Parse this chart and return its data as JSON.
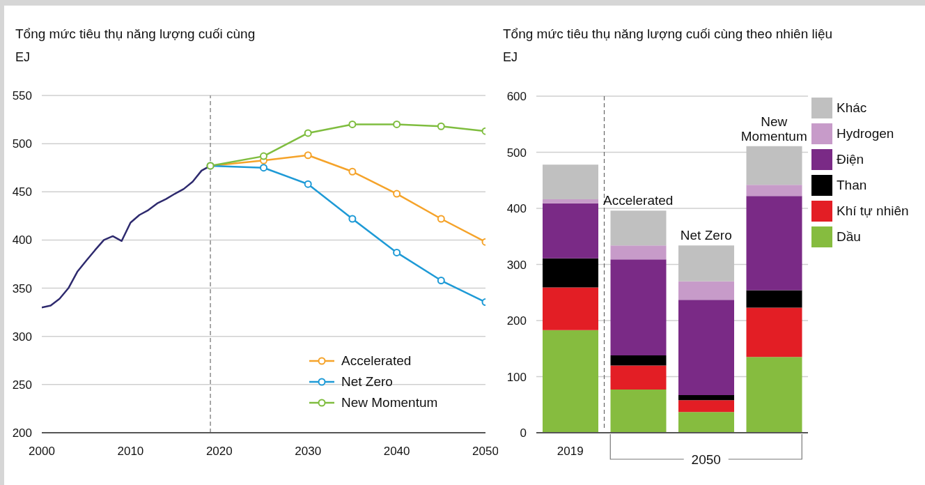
{
  "chart_data": [
    {
      "type": "line",
      "title": "Tổng mức tiêu thụ năng lượng cuối cùng",
      "ylabel": "EJ",
      "xlim": [
        2000,
        2050
      ],
      "xticks": [
        2000,
        2010,
        2020,
        2030,
        2040,
        2050
      ],
      "ylim": [
        200,
        550
      ],
      "yticks": [
        200,
        250,
        300,
        350,
        400,
        450,
        500,
        550
      ],
      "grid": "y",
      "legend": "bottom right",
      "marker": "circle",
      "line_style": "solid",
      "ref_lines": [
        {
          "axis": "x",
          "value": 2019,
          "color": "#8c8c8c",
          "line_style": "dashed"
        }
      ],
      "series": [
        {
          "color": "#2e2a6e",
          "marker": "none",
          "x": [
            2000,
            2001,
            2002,
            2003,
            2004,
            2005,
            2006,
            2007,
            2008,
            2009,
            2010,
            2011,
            2012,
            2013,
            2014,
            2015,
            2016,
            2017,
            2018,
            2019
          ],
          "values": [
            330,
            332,
            339,
            350,
            367,
            378.5,
            389.5,
            400,
            404,
            399,
            418,
            426,
            431,
            438,
            442.5,
            448,
            453,
            460.5,
            472,
            477
          ]
        },
        {
          "name": "Accelerated",
          "color": "#f5a32a",
          "x": [
            2019,
            2025,
            2030,
            2035,
            2040,
            2045,
            2050
          ],
          "values": [
            477,
            482.5,
            488,
            471,
            448,
            422,
            398
          ]
        },
        {
          "name": "Net Zero",
          "color": "#1e9ad6",
          "x": [
            2019,
            2025,
            2030,
            2035,
            2040,
            2045,
            2050
          ],
          "values": [
            477,
            475,
            458,
            422,
            387,
            358,
            335.5
          ]
        },
        {
          "name": "New Momentum",
          "color": "#7fbd3f",
          "x": [
            2019,
            2025,
            2030,
            2035,
            2040,
            2045,
            2050
          ],
          "values": [
            477,
            487,
            511,
            520,
            520,
            518,
            513
          ]
        }
      ]
    },
    {
      "type": "bar",
      "stacked": true,
      "title": "Tổng mức tiêu thụ năng lượng cuối cùng theo nhiên liệu",
      "ylabel": "EJ",
      "categories": [
        "2019",
        "Accelerated",
        "Net Zero",
        "New Momentum"
      ],
      "ylim": [
        0,
        600
      ],
      "yticks": [
        0,
        100,
        200,
        300,
        400,
        500,
        600
      ],
      "grid": "y",
      "legend": "right",
      "annotations": [
        "2050"
      ],
      "series": [
        {
          "name": "Dầu",
          "color": "#86bc3f",
          "values": [
            183,
            77,
            37,
            135
          ]
        },
        {
          "name": "Khí tự nhiên",
          "color": "#e31e25",
          "values": [
            76,
            43,
            21,
            88
          ]
        },
        {
          "name": "Than",
          "color": "#000000",
          "values": [
            52,
            18,
            9,
            31
          ]
        },
        {
          "name": "Điện",
          "color": "#7a2a86",
          "values": [
            98,
            171,
            170,
            168
          ]
        },
        {
          "name": "Hydrogen",
          "color": "#c79bc9",
          "values": [
            7,
            25,
            33,
            20
          ]
        },
        {
          "name": "Khác",
          "color": "#c0c0c0",
          "values": [
            62,
            62,
            64,
            69
          ]
        }
      ]
    }
  ]
}
